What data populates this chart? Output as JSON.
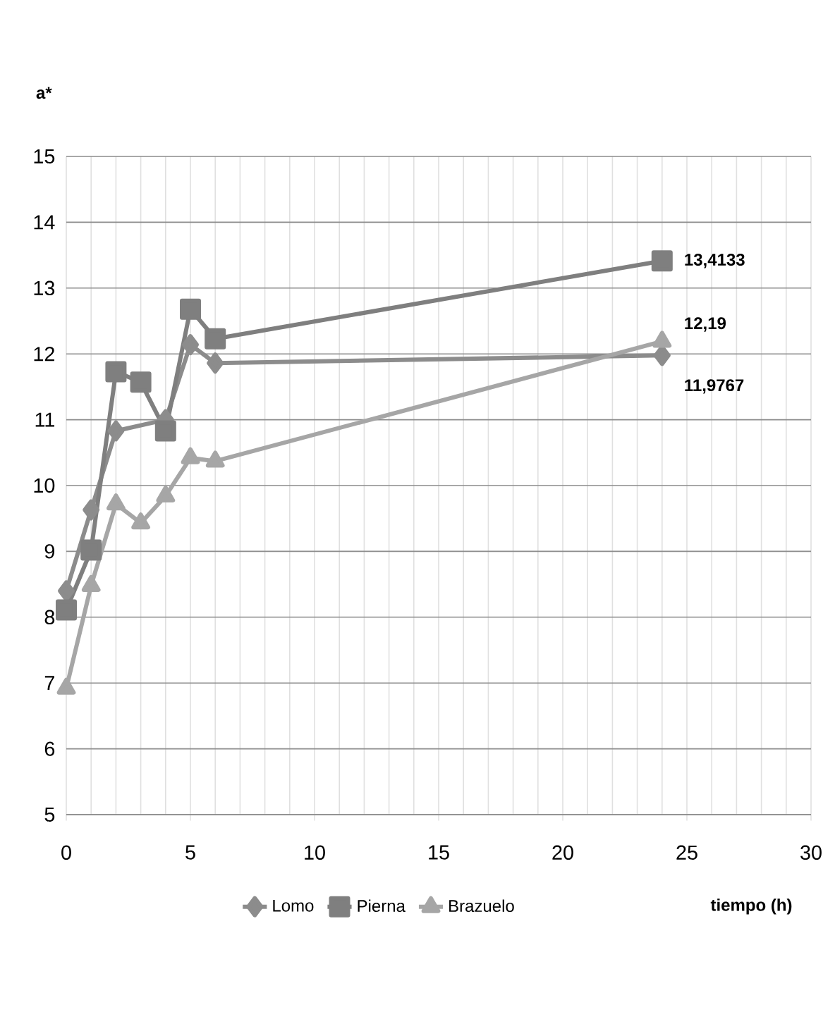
{
  "chart_data": {
    "type": "line",
    "ylabel": "a*",
    "xlabel": "tiempo (h)",
    "xlim": [
      0,
      30
    ],
    "xticks": [
      0,
      5,
      10,
      15,
      20,
      25,
      30
    ],
    "ylim": [
      5,
      15
    ],
    "yticks": [
      5,
      6,
      7,
      8,
      9,
      10,
      11,
      12,
      13,
      14,
      15
    ],
    "grid": true,
    "legend": "bottom",
    "line_style": "solid",
    "series": [
      {
        "name": "Lomo",
        "color": "#8c8c8c",
        "marker": "diamond",
        "x": [
          0,
          1,
          2,
          3,
          4,
          5,
          6,
          24
        ],
        "values": [
          8.4,
          9.63,
          10.83,
          null,
          11.0,
          12.14,
          11.86,
          11.9767
        ],
        "value_labels": [
          null,
          null,
          null,
          null,
          null,
          null,
          null,
          "11,9767"
        ]
      },
      {
        "name": "Pierna",
        "color": "#7f7f7f",
        "marker": "square",
        "x": [
          0,
          1,
          2,
          3,
          4,
          5,
          6,
          24
        ],
        "values": [
          8.11,
          9.02,
          11.73,
          11.57,
          10.83,
          12.68,
          12.23,
          13.4133
        ],
        "value_labels": [
          null,
          null,
          null,
          null,
          null,
          null,
          null,
          "13,4133"
        ]
      },
      {
        "name": "Brazuelo",
        "color": "#a6a6a6",
        "marker": "triangle",
        "x": [
          0,
          1,
          2,
          3,
          4,
          5,
          6,
          24
        ],
        "values": [
          6.92,
          8.48,
          9.72,
          9.43,
          9.84,
          10.42,
          10.37,
          12.19
        ],
        "value_labels": [
          null,
          null,
          null,
          null,
          null,
          null,
          null,
          "12,19"
        ]
      }
    ]
  }
}
